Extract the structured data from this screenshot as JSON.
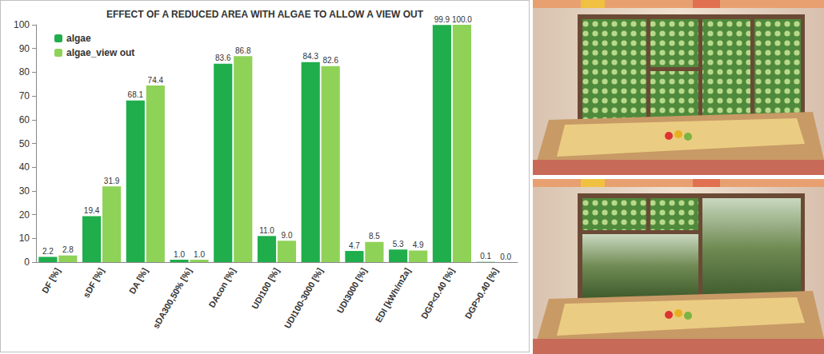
{
  "chart_data": {
    "type": "bar",
    "title": "EFFECT OF A REDUCED AREA WITH ALGAE TO ALLOW A VIEW OUT",
    "categories": [
      "DF [%]",
      "sDF [%]",
      "DA [%]",
      "sDA300,50% [%]",
      "DAcon [%]",
      "UDI100 [%]",
      "UDI100-3000 [%]",
      "UDI3000 [%]",
      "EDI [kWh/m2a]",
      "DGP<0.40 [%]",
      "DGP>0.40 [%]"
    ],
    "series": [
      {
        "name": "algae",
        "color": "#1fae4b",
        "values": [
          2.2,
          19.4,
          68.1,
          1.0,
          83.6,
          11.0,
          84.3,
          4.7,
          5.3,
          99.9,
          0.1
        ],
        "value_labels": [
          "2.2",
          "19.4",
          "68.1",
          "1.0",
          "83.6",
          "11.0",
          "84.3",
          "4.7",
          "5.3",
          "99.9",
          "0.1"
        ]
      },
      {
        "name": "algae_view out",
        "color": "#8fd258",
        "values": [
          2.8,
          31.9,
          74.4,
          1.0,
          86.8,
          9.0,
          82.6,
          8.5,
          4.9,
          100.0,
          0.0
        ],
        "value_labels": [
          "2.8",
          "31.9",
          "74.4",
          "1.0",
          "86.8",
          "9.0",
          "82.6",
          "8.5",
          "4.9",
          "100.0",
          "0.0"
        ]
      }
    ],
    "ylim": [
      0,
      100
    ],
    "yticks": [
      0,
      10,
      20,
      30,
      40,
      50,
      60,
      70,
      80,
      90,
      100
    ],
    "grid": false,
    "legend": "top-left",
    "data_labels": true
  }
}
